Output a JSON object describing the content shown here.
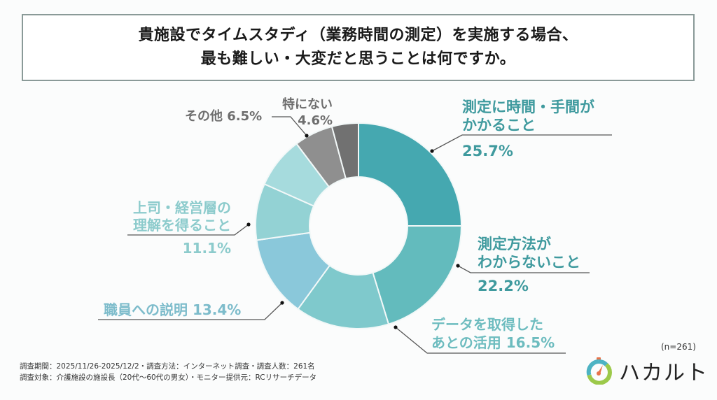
{
  "title": {
    "line1": "貴施設でタイムスタディ（業務時間の測定）を実施する場合、",
    "line2": "最も難しい・大変だと思うことは何ですか。"
  },
  "chart_data": {
    "type": "pie",
    "subtype": "donut",
    "title": "貴施設でタイムスタディ（業務時間の測定）を実施する場合、最も難しい・大変だと思うことは何ですか。",
    "start_angle": "12 o'clock",
    "direction": "clockwise",
    "slices": [
      {
        "name": "測定に時間・手間がかかること",
        "label_lines": [
          "測定に時間・手間が",
          "かかること"
        ],
        "value_label": "25.7%",
        "value": 25.7,
        "color": "#45a8b0",
        "label_color": "#3f9a9e"
      },
      {
        "name": "測定方法がわからないこと",
        "label_lines": [
          "測定方法が",
          "わからないこと"
        ],
        "value_label": "22.2%",
        "value": 22.2,
        "color": "#63bbbd",
        "label_color": "#3f9a9e"
      },
      {
        "name": "データを取得したあとの活用",
        "label_lines": [
          "データを取得した",
          "あとの活用"
        ],
        "value_label": "16.5%",
        "value": 16.5,
        "color": "#7fc9cc",
        "label_color": "#6dbcbf"
      },
      {
        "name": "職員への説明",
        "label_lines": [
          "職員への説明"
        ],
        "value_label": "13.4%",
        "value": 13.4,
        "color": "#8ac8da",
        "label_color": "#7dbccb"
      },
      {
        "name": "上司・経営層の理解を得ること",
        "label_lines": [
          "上司・経営層の",
          "理解を得ること"
        ],
        "value_label": "11.1%",
        "value": 11.1,
        "color": "#93d2d4",
        "label_color": "#8ccbcc"
      },
      {
        "name": "",
        "label_lines": [],
        "value_label": "",
        "value": null,
        "color": "#a6dbdd",
        "label_color": "#a6dbdd"
      },
      {
        "name": "その他",
        "label_lines": [
          "その他"
        ],
        "value_label": "6.5%",
        "value": 6.5,
        "color": "#8f8f8f",
        "label_color": "#6e6e6e"
      },
      {
        "name": "特にない",
        "label_lines": [
          "特にない"
        ],
        "value_label": "4.6%",
        "value": 4.6,
        "color": "#717171",
        "label_color": "#6e6e6e"
      }
    ],
    "legend": "none (callout labels)"
  },
  "sample_size": "(n=261)",
  "footer": {
    "line1": "調査期間：2025/11/26-2025/12/2・調査方法：インターネット調査・調査人数：261名",
    "line2": "調査対象：介護施設の施設長（20代〜60代の男女）・モニター提供元：RCリサーチデータ"
  },
  "logo": {
    "text": "ハカルト",
    "icon": "stopwatch-icon",
    "colors": [
      "#4db3c3",
      "#9cc94a",
      "#e8734a"
    ]
  }
}
